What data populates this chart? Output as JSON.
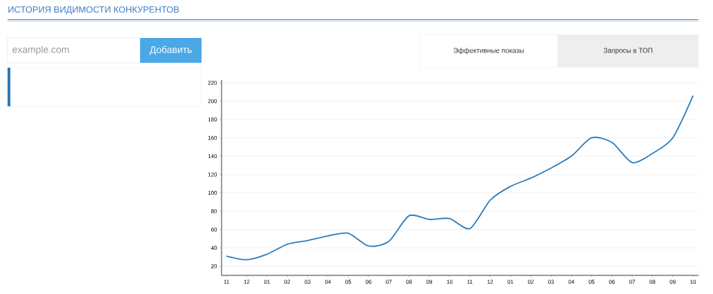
{
  "chart_data": {
    "type": "line",
    "title": "ИСТОРИЯ ВИДИМОСТИ КОНКУРЕНТОВ",
    "annotations": [
      "example.com",
      "Добавить",
      "Эффективные показы",
      "Запросы в ТОП"
    ],
    "categories": [
      "11",
      "12",
      "01",
      "02",
      "03",
      "04",
      "05",
      "06",
      "07",
      "08",
      "09",
      "10",
      "11",
      "12",
      "01",
      "02",
      "03",
      "04",
      "05",
      "06",
      "07",
      "08",
      "09",
      "10"
    ],
    "values": [
      31,
      27,
      33,
      44,
      48,
      53,
      56,
      42,
      47,
      75,
      71,
      72,
      61,
      92,
      107,
      116,
      127,
      140,
      160,
      155,
      133,
      143,
      160,
      206
    ],
    "color": "#2b7bb9",
    "ylim": [
      10,
      223
    ],
    "yticks": [
      20,
      40,
      60,
      80,
      100,
      120,
      140,
      160,
      180,
      200,
      220
    ],
    "grid": "y",
    "marker": "none",
    "line_style": "solid"
  }
}
